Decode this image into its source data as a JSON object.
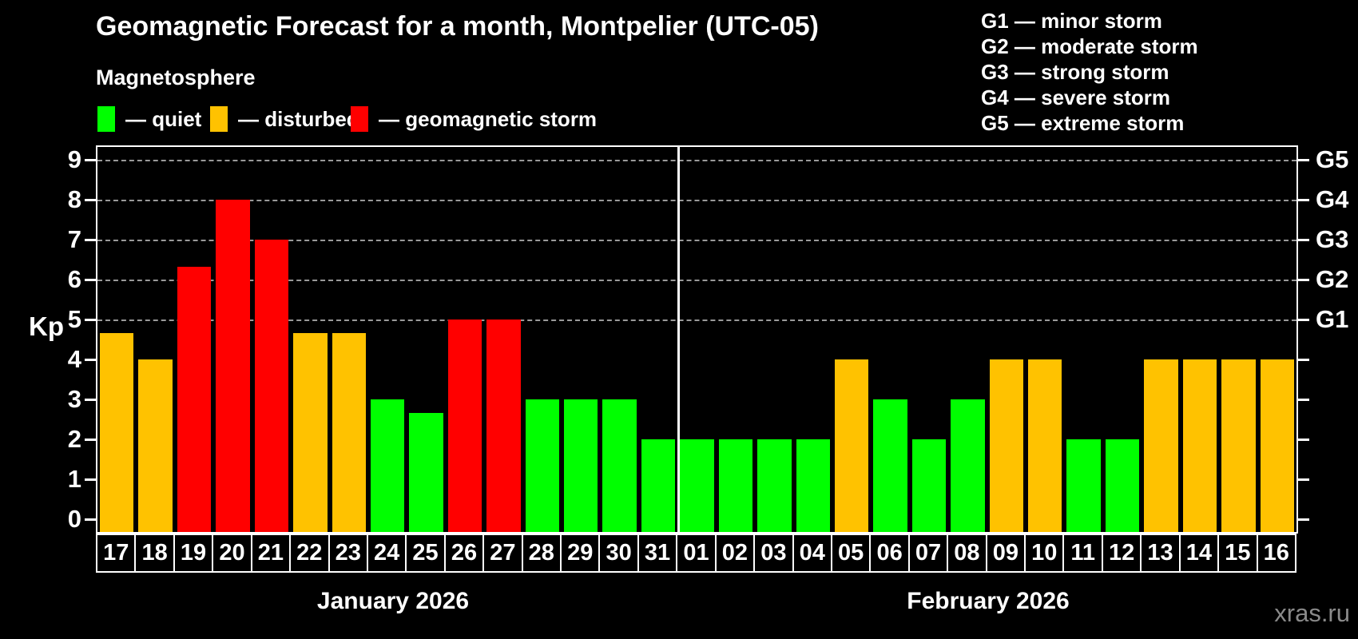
{
  "header": {
    "title": "Geomagnetic Forecast for a month, Montpelier (UTC-05)",
    "subtitle": "Magnetosphere"
  },
  "legend": {
    "items": [
      {
        "key": "quiet",
        "label": "— quiet",
        "color": "#00ff00"
      },
      {
        "key": "disturbed",
        "label": "— disturbed",
        "color": "#ffc200"
      },
      {
        "key": "storm",
        "label": "— geomagnetic storm",
        "color": "#ff0000"
      }
    ]
  },
  "g_legend": {
    "items": [
      "G1 — minor storm",
      "G2 — moderate storm",
      "G3 — strong storm",
      "G4 — severe storm",
      "G5 — extreme storm"
    ]
  },
  "colors": {
    "quiet": "#00ff00",
    "disturbed": "#ffc200",
    "storm": "#ff0000",
    "grid": "#9a9a9a",
    "axis": "#ffffff"
  },
  "watermark": "xras.ru",
  "chart_data": {
    "type": "bar",
    "title": "Geomagnetic Forecast for a month, Montpelier (UTC-05)",
    "ylabel": "Kp",
    "ylim": [
      0,
      9
    ],
    "y_ticks": [
      0,
      1,
      2,
      3,
      4,
      5,
      6,
      7,
      8,
      9
    ],
    "grid": "dashed-at-storm-levels",
    "grid_levels": [
      {
        "kp": 5,
        "label": "G1"
      },
      {
        "kp": 6,
        "label": "G2"
      },
      {
        "kp": 7,
        "label": "G3"
      },
      {
        "kp": 8,
        "label": "G4"
      },
      {
        "kp": 9,
        "label": "G5"
      }
    ],
    "months": [
      {
        "label": "January 2026",
        "days": [
          {
            "day": "17",
            "kp": 4.67,
            "status": "disturbed"
          },
          {
            "day": "18",
            "kp": 4.0,
            "status": "disturbed"
          },
          {
            "day": "19",
            "kp": 6.33,
            "status": "storm"
          },
          {
            "day": "20",
            "kp": 8.0,
            "status": "storm"
          },
          {
            "day": "21",
            "kp": 7.0,
            "status": "storm"
          },
          {
            "day": "22",
            "kp": 4.67,
            "status": "disturbed"
          },
          {
            "day": "23",
            "kp": 4.67,
            "status": "disturbed"
          },
          {
            "day": "24",
            "kp": 3.0,
            "status": "quiet"
          },
          {
            "day": "25",
            "kp": 2.67,
            "status": "quiet"
          },
          {
            "day": "26",
            "kp": 5.0,
            "status": "storm"
          },
          {
            "day": "27",
            "kp": 5.0,
            "status": "storm"
          },
          {
            "day": "28",
            "kp": 3.0,
            "status": "quiet"
          },
          {
            "day": "29",
            "kp": 3.0,
            "status": "quiet"
          },
          {
            "day": "30",
            "kp": 3.0,
            "status": "quiet"
          },
          {
            "day": "31",
            "kp": 2.0,
            "status": "quiet"
          }
        ]
      },
      {
        "label": "February 2026",
        "days": [
          {
            "day": "01",
            "kp": 2.0,
            "status": "quiet"
          },
          {
            "day": "02",
            "kp": 2.0,
            "status": "quiet"
          },
          {
            "day": "03",
            "kp": 2.0,
            "status": "quiet"
          },
          {
            "day": "04",
            "kp": 2.0,
            "status": "quiet"
          },
          {
            "day": "05",
            "kp": 4.0,
            "status": "disturbed"
          },
          {
            "day": "06",
            "kp": 3.0,
            "status": "quiet"
          },
          {
            "day": "07",
            "kp": 2.0,
            "status": "quiet"
          },
          {
            "day": "08",
            "kp": 3.0,
            "status": "quiet"
          },
          {
            "day": "09",
            "kp": 4.0,
            "status": "disturbed"
          },
          {
            "day": "10",
            "kp": 4.0,
            "status": "disturbed"
          },
          {
            "day": "11",
            "kp": 2.0,
            "status": "quiet"
          },
          {
            "day": "12",
            "kp": 2.0,
            "status": "quiet"
          },
          {
            "day": "13",
            "kp": 4.0,
            "status": "disturbed"
          },
          {
            "day": "14",
            "kp": 4.0,
            "status": "disturbed"
          },
          {
            "day": "15",
            "kp": 4.0,
            "status": "disturbed"
          },
          {
            "day": "16",
            "kp": 4.0,
            "status": "disturbed"
          }
        ]
      }
    ]
  }
}
